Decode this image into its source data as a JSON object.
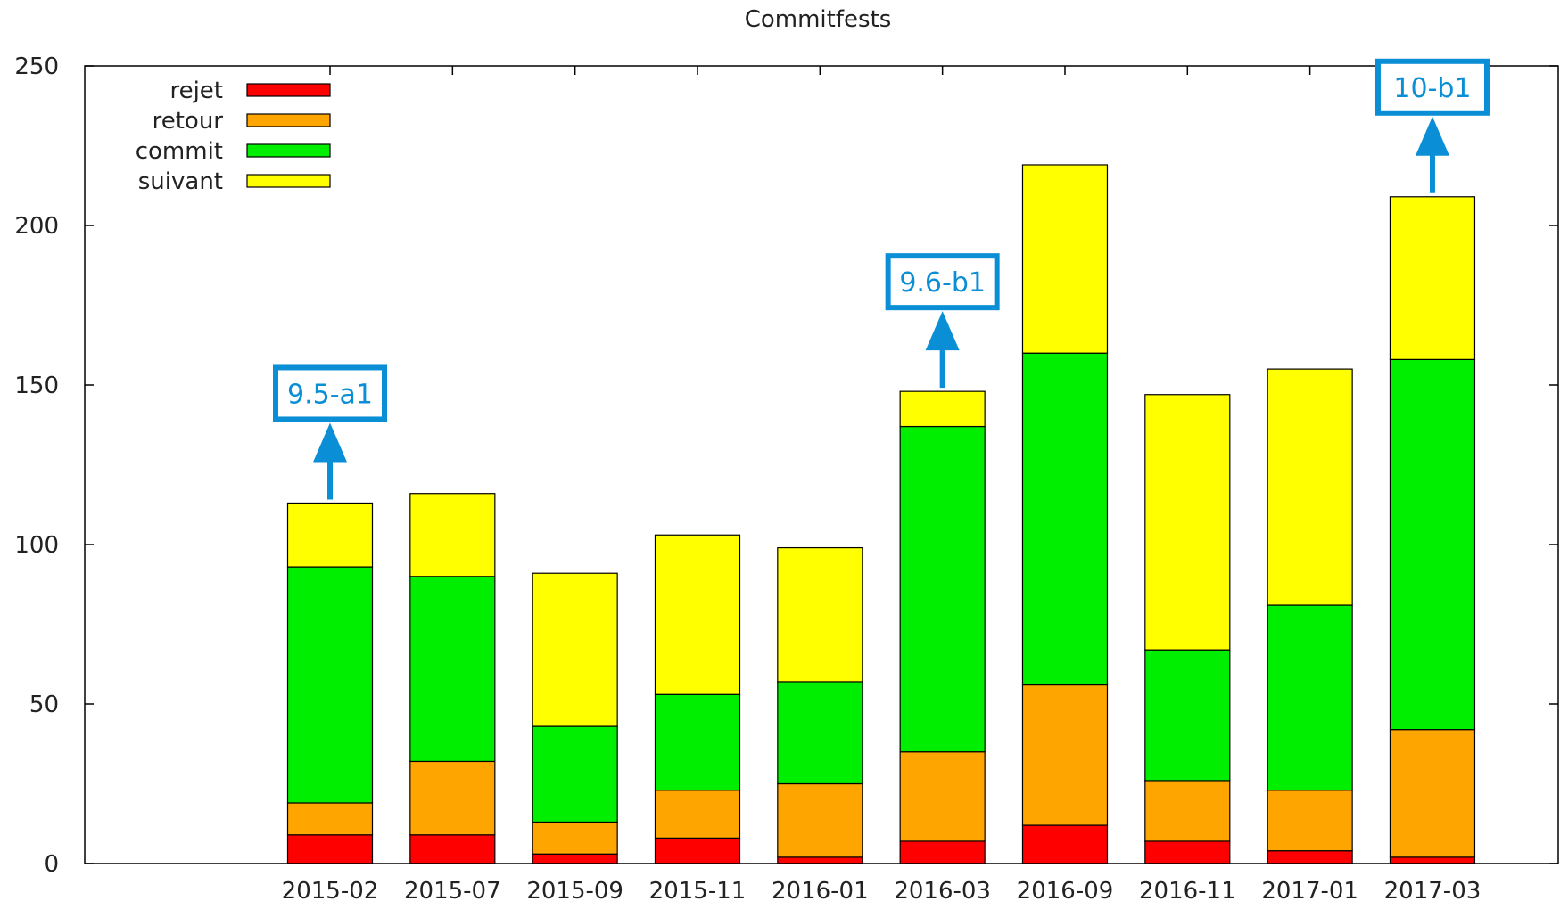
{
  "chart_data": {
    "type": "bar",
    "stacked": true,
    "title": "Commitfests",
    "xlabel": "",
    "ylabel": "",
    "ylim": [
      0,
      250
    ],
    "yticks": [
      0,
      50,
      100,
      150,
      200,
      250
    ],
    "grid": false,
    "legend_position": "top-left",
    "categories": [
      "2015-02",
      "2015-07",
      "2015-09",
      "2015-11",
      "2016-01",
      "2016-03",
      "2016-09",
      "2016-11",
      "2017-01",
      "2017-03"
    ],
    "series": [
      {
        "name": "rejet",
        "color": "#ff0000",
        "values": [
          9,
          9,
          3,
          8,
          2,
          7,
          12,
          7,
          4,
          2
        ]
      },
      {
        "name": "retour",
        "color": "#ffa500",
        "values": [
          10,
          23,
          10,
          15,
          23,
          28,
          44,
          19,
          19,
          40
        ]
      },
      {
        "name": "commit",
        "color": "#00ee00",
        "values": [
          74,
          58,
          30,
          30,
          32,
          102,
          104,
          41,
          58,
          116
        ]
      },
      {
        "name": "suivant",
        "color": "#ffff00",
        "values": [
          20,
          26,
          48,
          50,
          42,
          11,
          59,
          80,
          74,
          51
        ]
      }
    ],
    "annotations": [
      {
        "category": "2015-02",
        "label": "9.5-a1",
        "color": "#0a8fd6"
      },
      {
        "category": "2016-03",
        "label": "9.6-b1",
        "color": "#0a8fd6"
      },
      {
        "category": "2017-03",
        "label": "10-b1",
        "color": "#0a8fd6"
      }
    ]
  }
}
